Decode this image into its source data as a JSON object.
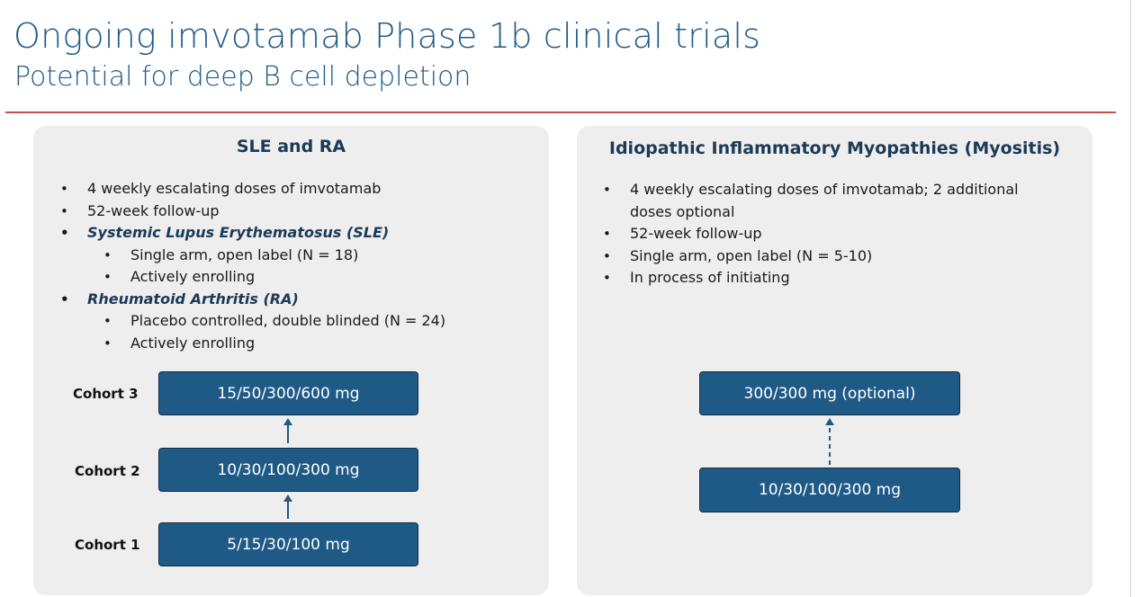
{
  "header": {
    "title": "Ongoing imvotamab Phase 1b clinical trials",
    "subtitle": "Potential for deep B cell depletion"
  },
  "left_panel": {
    "title": "SLE and RA",
    "bullets": [
      "4 weekly escalating doses of imvotamab",
      "52-week follow-up",
      "Systemic Lupus Erythematosus (SLE)",
      "Single arm, open label (N = 18)",
      "Actively enrolling",
      "Rheumatoid Arthritis (RA)",
      "Placebo controlled, double blinded (N = 24)",
      "Actively enrolling"
    ],
    "cohorts": [
      {
        "label": "Cohort 3",
        "dose": "15/50/300/600 mg"
      },
      {
        "label": "Cohort 2",
        "dose": "10/30/100/300 mg"
      },
      {
        "label": "Cohort 1",
        "dose": "5/15/30/100 mg"
      }
    ]
  },
  "right_panel": {
    "title": "Idiopathic Inflammatory Myopathies (Myositis)",
    "bullets": [
      "4 weekly escalating doses of imvotamab; 2 additional doses optional",
      "52-week follow-up",
      "Single arm, open label (N = 5-10)",
      "In process of initiating"
    ],
    "doses": {
      "optional": "300/300 mg (optional)",
      "base": "10/30/100/300 mg"
    }
  },
  "colors": {
    "title_blue": "#1f5a87",
    "rule_red": "#c0504d",
    "box_fill": "#1f5a87",
    "panel_bg": "#eeeeee"
  }
}
